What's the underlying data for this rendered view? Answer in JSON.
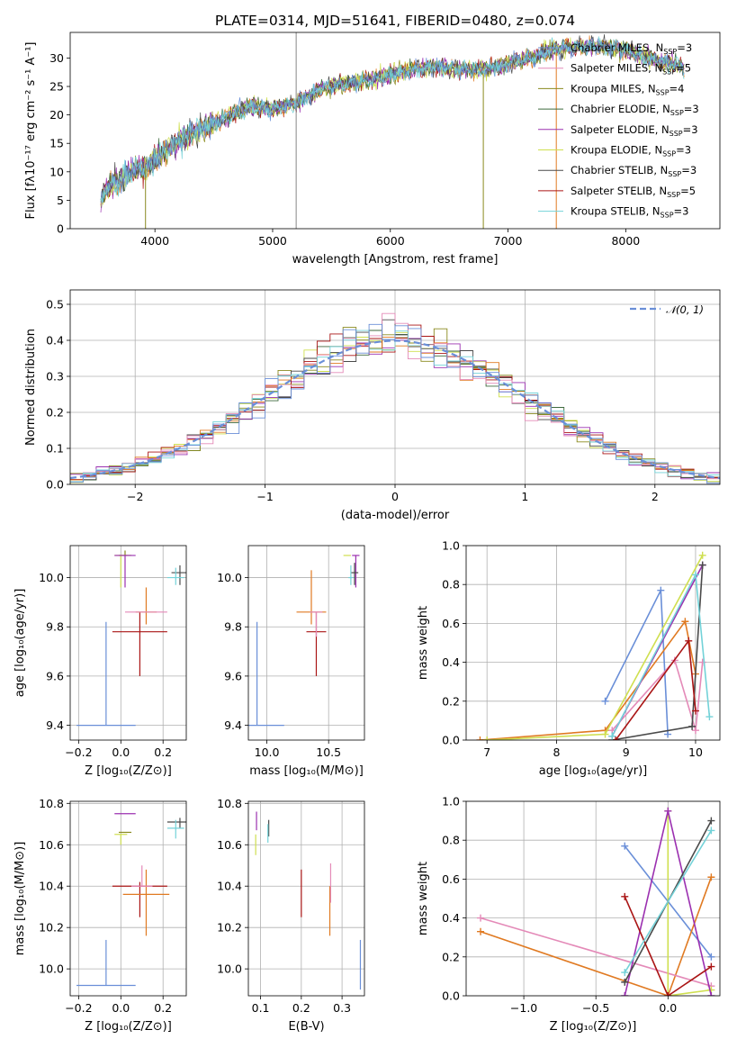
{
  "colors": [
    "#6a8fd8",
    "#e07a22",
    "#8a8a1e",
    "#3d6a3d",
    "#9b30b0",
    "#cfdf4f",
    "#4a4a4a",
    "#aa1515",
    "#73d2d8",
    "#e48ab8"
  ],
  "chart_data": [
    {
      "id": "p1",
      "type": "line",
      "title": "PLATE=0314, MJD=51641, FIBERID=0480, z=0.074",
      "xlabel": "wavelength [Angstrom, rest frame]",
      "ylabel": "Flux [fλ10⁻¹⁷ erg cm⁻² s⁻¹ A⁻¹]",
      "xlim": [
        3280,
        8800
      ],
      "ylim": [
        0,
        34.5
      ],
      "xticks": [
        4000,
        5000,
        6000,
        7000,
        8000
      ],
      "xticklabels": [
        "4000",
        "5000",
        "6000",
        "7000",
        "8000"
      ],
      "yticks": [
        0,
        5,
        10,
        15,
        20,
        25,
        30
      ],
      "yticklabels": [
        "0",
        "5",
        "10",
        "15",
        "20",
        "25",
        "30"
      ],
      "grid": false,
      "legend_position": "right",
      "legend": [
        {
          "label": "Chabrier MILES, N",
          "sub": "SSP",
          "tail": "=3",
          "color": "#6a8fd8"
        },
        {
          "label": "Salpeter MILES, N",
          "sub": "SSP",
          "tail": "=5",
          "color": "#e48ab8"
        },
        {
          "label": "Kroupa MILES, N",
          "sub": "SSP",
          "tail": "=4",
          "color": "#8a8a1e"
        },
        {
          "label": "Chabrier ELODIE, N",
          "sub": "SSP",
          "tail": "=3",
          "color": "#3d6a3d"
        },
        {
          "label": "Salpeter ELODIE, N",
          "sub": "SSP",
          "tail": "=3",
          "color": "#9b30b0"
        },
        {
          "label": "Kroupa ELODIE, N",
          "sub": "SSP",
          "tail": "=3",
          "color": "#cfdf4f"
        },
        {
          "label": "Chabrier STELIB, N",
          "sub": "SSP",
          "tail": "=3",
          "color": "#4a4a4a"
        },
        {
          "label": "Salpeter STELIB, N",
          "sub": "SSP",
          "tail": "=5",
          "color": "#aa1515"
        },
        {
          "label": "Kroupa STELIB, N",
          "sub": "SSP",
          "tail": "=3",
          "color": "#73d2d8"
        }
      ],
      "continuum": [
        [
          3540,
          5
        ],
        [
          3600,
          7.5
        ],
        [
          3700,
          8.5
        ],
        [
          3800,
          10
        ],
        [
          3950,
          11
        ],
        [
          4050,
          13
        ],
        [
          4200,
          15.5
        ],
        [
          4400,
          17.5
        ],
        [
          4600,
          19.5
        ],
        [
          4800,
          21.5
        ],
        [
          5000,
          21
        ],
        [
          5200,
          22
        ],
        [
          5400,
          24.5
        ],
        [
          5600,
          25.5
        ],
        [
          5800,
          26
        ],
        [
          6000,
          27
        ],
        [
          6200,
          28
        ],
        [
          6400,
          28.5
        ],
        [
          6600,
          28
        ],
        [
          6800,
          28
        ],
        [
          7000,
          29
        ],
        [
          7200,
          30
        ],
        [
          7400,
          31.5
        ],
        [
          7600,
          32
        ],
        [
          7800,
          32
        ],
        [
          8000,
          31.5
        ],
        [
          8200,
          30
        ],
        [
          8400,
          29
        ],
        [
          8500,
          28
        ]
      ],
      "spikes": [
        {
          "x": 3920,
          "ymin": 0,
          "ymax": 11,
          "color": "#8a8a1e"
        },
        {
          "x": 5200,
          "ymin": 0,
          "ymax": 34.5,
          "color": "#888888"
        },
        {
          "x": 6790,
          "ymin": 0,
          "ymax": 27,
          "color": "#8a8a1e"
        },
        {
          "x": 7410,
          "ymin": 0,
          "ymax": 31,
          "color": "#e07a22"
        }
      ]
    },
    {
      "id": "p2",
      "type": "area",
      "xlabel": "(data-model)/error",
      "ylabel": "Normed distribution",
      "xlim": [
        -2.5,
        2.5
      ],
      "ylim": [
        0,
        0.54
      ],
      "xticks": [
        -2,
        -1,
        0,
        1,
        2
      ],
      "xticklabels": [
        "−2",
        "−1",
        "0",
        "1",
        "2"
      ],
      "yticks": [
        0,
        0.1,
        0.2,
        0.3,
        0.4,
        0.5
      ],
      "yticklabels": [
        "0.0",
        "0.1",
        "0.2",
        "0.3",
        "0.4",
        "0.5"
      ],
      "grid": true,
      "legend_position": "top-right",
      "legend_label": "𝒩(0, 1)",
      "bin_width": 0.1,
      "bin_start": -2.5
    },
    {
      "id": "p3",
      "type": "scatter",
      "xlabel": "Z [log₁₀(Z/Z⊙)]",
      "ylabel": "age  [log₁₀(age/yr)]",
      "xlim": [
        -0.24,
        0.31
      ],
      "ylim": [
        9.34,
        10.13
      ],
      "xticks": [
        -0.2,
        0,
        0.2
      ],
      "xticklabels": [
        "−0.2",
        "0.0",
        "0.2"
      ],
      "yticks": [
        9.4,
        9.6,
        9.8,
        10.0
      ],
      "yticklabels": [
        "9.4",
        "9.6",
        "9.8",
        "10.0"
      ],
      "grid": true,
      "points": [
        {
          "x": -0.07,
          "y": 9.4,
          "xerr": 0.14,
          "yerr": [
            0.0,
            0.42
          ],
          "color": "#6a8fd8"
        },
        {
          "x": 0.09,
          "y": 9.78,
          "xerr": 0.13,
          "yerr": [
            0.18,
            0.08
          ],
          "color": "#aa1515"
        },
        {
          "x": 0.12,
          "y": 9.86,
          "xerr": 0.05,
          "yerr": [
            0.05,
            0.1
          ],
          "color": "#e07a22"
        },
        {
          "x": 0.12,
          "y": 9.86,
          "xerr": 0.1,
          "yerr": [
            0.0,
            0.0
          ],
          "color": "#e48ab8"
        },
        {
          "x": 0.0,
          "y": 10.09,
          "xerr": 0.03,
          "yerr": [
            0.13,
            0.0
          ],
          "color": "#cfdf4f"
        },
        {
          "x": 0.02,
          "y": 10.09,
          "xerr": 0.03,
          "yerr": [
            0.0,
            0.02
          ],
          "color": "#8a8a1e"
        },
        {
          "x": 0.02,
          "y": 10.09,
          "xerr": 0.05,
          "yerr": [
            0.13,
            0.0
          ],
          "color": "#9b30b0"
        },
        {
          "x": 0.28,
          "y": 10.02,
          "xerr": 0.04,
          "yerr": [
            0.05,
            0.03
          ],
          "color": "#4a4a4a"
        },
        {
          "x": 0.26,
          "y": 10.0,
          "xerr": 0.04,
          "yerr": [
            0.03,
            0.04
          ],
          "color": "#73d2d8"
        }
      ]
    },
    {
      "id": "p4",
      "type": "scatter",
      "xlabel": "mass [log₁₀(M/M⊙)]",
      "ylabel": "",
      "xlim": [
        9.85,
        10.79
      ],
      "ylim": [
        9.34,
        10.13
      ],
      "xticks": [
        10.0,
        10.5
      ],
      "xticklabels": [
        "10.0",
        "10.5"
      ],
      "yticks": [
        9.4,
        9.6,
        9.8,
        10.0
      ],
      "yticklabels": [
        "9.4",
        "9.6",
        "9.8",
        "10.0"
      ],
      "grid": true,
      "points": [
        {
          "x": 9.92,
          "y": 9.4,
          "xerr": 0.22,
          "yerr": [
            0.0,
            0.42
          ],
          "color": "#6a8fd8"
        },
        {
          "x": 10.4,
          "y": 9.78,
          "xerr": 0.08,
          "yerr": [
            0.18,
            0.08
          ],
          "color": "#aa1515"
        },
        {
          "x": 10.36,
          "y": 9.86,
          "xerr": 0.12,
          "yerr": [
            0.05,
            0.17
          ],
          "color": "#e07a22"
        },
        {
          "x": 10.4,
          "y": 9.86,
          "xerr": 0.05,
          "yerr": [
            0.1,
            0.0
          ],
          "color": "#e48ab8"
        },
        {
          "x": 10.65,
          "y": 10.09,
          "xerr": 0.03,
          "yerr": [
            0.0,
            0.0
          ],
          "color": "#cfdf4f"
        },
        {
          "x": 10.72,
          "y": 10.09,
          "xerr": 0.03,
          "yerr": [
            0.13,
            0.0
          ],
          "color": "#9b30b0"
        },
        {
          "x": 10.71,
          "y": 10.02,
          "xerr": 0.03,
          "yerr": [
            0.05,
            0.04
          ],
          "color": "#4a4a4a"
        },
        {
          "x": 10.68,
          "y": 10.0,
          "xerr": 0.02,
          "yerr": [
            0.03,
            0.05
          ],
          "color": "#73d2d8"
        }
      ]
    },
    {
      "id": "p5",
      "type": "line",
      "xlabel": "age  [log₁₀(age/yr)]",
      "ylabel": "mass weight",
      "xlim": [
        6.7,
        10.35
      ],
      "ylim": [
        0,
        1.0
      ],
      "xticks": [
        7,
        8,
        9,
        10
      ],
      "xticklabels": [
        "7",
        "8",
        "9",
        "10"
      ],
      "yticks": [
        0,
        0.2,
        0.4,
        0.6,
        0.8,
        1.0
      ],
      "yticklabels": [
        "0.0",
        "0.2",
        "0.4",
        "0.6",
        "0.8",
        "1.0"
      ],
      "grid": true,
      "series": [
        {
          "color": "#6a8fd8",
          "points": [
            [
              8.7,
              0.2
            ],
            [
              9.5,
              0.77
            ],
            [
              9.6,
              0.03
            ]
          ]
        },
        {
          "color": "#e07a22",
          "points": [
            [
              6.9,
              0.0
            ],
            [
              8.7,
              0.05
            ],
            [
              9.85,
              0.61
            ],
            [
              10.0,
              0.34
            ]
          ]
        },
        {
          "color": "#e48ab8",
          "points": [
            [
              8.8,
              0.05
            ],
            [
              9.7,
              0.41
            ],
            [
              10.0,
              0.05
            ],
            [
              10.1,
              0.4
            ]
          ]
        },
        {
          "color": "#cfdf4f",
          "points": [
            [
              7.0,
              0.0
            ],
            [
              8.7,
              0.03
            ],
            [
              10.1,
              0.95
            ]
          ]
        },
        {
          "color": "#9b30b0",
          "points": [
            [
              8.8,
              0.02
            ],
            [
              10.1,
              0.9
            ]
          ]
        },
        {
          "color": "#4a4a4a",
          "points": [
            [
              8.8,
              0.0
            ],
            [
              9.95,
              0.07
            ],
            [
              10.1,
              0.9
            ]
          ]
        },
        {
          "color": "#aa1515",
          "points": [
            [
              8.85,
              0.0
            ],
            [
              9.9,
              0.51
            ],
            [
              10.0,
              0.15
            ]
          ]
        },
        {
          "color": "#73d2d8",
          "points": [
            [
              8.8,
              0.02
            ],
            [
              10.0,
              0.85
            ],
            [
              10.2,
              0.12
            ]
          ]
        }
      ]
    },
    {
      "id": "p6",
      "type": "scatter",
      "xlabel": "Z [log₁₀(Z/Z⊙)]",
      "ylabel": "mass [log₁₀(M/M⊙)]",
      "xlim": [
        -0.24,
        0.31
      ],
      "ylim": [
        9.87,
        10.81
      ],
      "xticks": [
        -0.2,
        0,
        0.2
      ],
      "xticklabels": [
        "−0.2",
        "0.0",
        "0.2"
      ],
      "yticks": [
        10.0,
        10.2,
        10.4,
        10.6,
        10.8
      ],
      "yticklabels": [
        "10.0",
        "10.2",
        "10.4",
        "10.6",
        "10.8"
      ],
      "grid": true,
      "points": [
        {
          "x": -0.07,
          "y": 9.92,
          "xerr": 0.14,
          "yerr": [
            0.0,
            0.22
          ],
          "color": "#6a8fd8"
        },
        {
          "x": 0.09,
          "y": 10.4,
          "xerr": 0.13,
          "yerr": [
            0.15,
            0.02
          ],
          "color": "#aa1515"
        },
        {
          "x": 0.12,
          "y": 10.36,
          "xerr": 0.11,
          "yerr": [
            0.2,
            0.12
          ],
          "color": "#e07a22"
        },
        {
          "x": 0.1,
          "y": 10.4,
          "xerr": 0.05,
          "yerr": [
            0.0,
            0.1
          ],
          "color": "#e48ab8"
        },
        {
          "x": 0.0,
          "y": 10.65,
          "xerr": 0.03,
          "yerr": [
            0.05,
            0.0
          ],
          "color": "#cfdf4f"
        },
        {
          "x": 0.02,
          "y": 10.66,
          "xerr": 0.03,
          "yerr": [
            0.0,
            0.0
          ],
          "color": "#8a8a1e"
        },
        {
          "x": 0.02,
          "y": 10.75,
          "xerr": 0.05,
          "yerr": [
            0.0,
            0.0
          ],
          "color": "#9b30b0"
        },
        {
          "x": 0.28,
          "y": 10.71,
          "xerr": 0.06,
          "yerr": [
            0.03,
            0.02
          ],
          "color": "#4a4a4a"
        },
        {
          "x": 0.26,
          "y": 10.68,
          "xerr": 0.04,
          "yerr": [
            0.05,
            0.04
          ],
          "color": "#73d2d8"
        }
      ]
    },
    {
      "id": "p7",
      "type": "scatter",
      "xlabel": "E(B-V)",
      "ylabel": "",
      "xlim": [
        0.07,
        0.355
      ],
      "ylim": [
        9.87,
        10.81
      ],
      "xticks": [
        0.1,
        0.2,
        0.3
      ],
      "xticklabels": [
        "0.1",
        "0.2",
        "0.3"
      ],
      "yticks": [
        10.0,
        10.2,
        10.4,
        10.6,
        10.8
      ],
      "yticklabels": [
        "10.0",
        "10.2",
        "10.4",
        "10.6",
        "10.8"
      ],
      "grid": true,
      "points": [
        {
          "x": 0.345,
          "y": 10.0,
          "xerr": 0.0,
          "yerr": [
            0.1,
            0.14
          ],
          "color": "#6a8fd8"
        },
        {
          "x": 0.2,
          "y": 10.36,
          "xerr": 0.0,
          "yerr": [
            0.11,
            0.12
          ],
          "color": "#aa1515"
        },
        {
          "x": 0.27,
          "y": 10.28,
          "xerr": 0.0,
          "yerr": [
            0.12,
            0.12
          ],
          "color": "#e07a22"
        },
        {
          "x": 0.272,
          "y": 10.42,
          "xerr": 0.0,
          "yerr": [
            0.1,
            0.09
          ],
          "color": "#e48ab8"
        },
        {
          "x": 0.088,
          "y": 10.6,
          "xerr": 0.0,
          "yerr": [
            0.05,
            0.05
          ],
          "color": "#cfdf4f"
        },
        {
          "x": 0.09,
          "y": 10.72,
          "xerr": 0.0,
          "yerr": [
            0.05,
            0.04
          ],
          "color": "#9b30b0"
        },
        {
          "x": 0.12,
          "y": 10.68,
          "xerr": 0.0,
          "yerr": [
            0.04,
            0.04
          ],
          "color": "#4a4a4a"
        },
        {
          "x": 0.118,
          "y": 10.66,
          "xerr": 0.0,
          "yerr": [
            0.05,
            0.04
          ],
          "color": "#73d2d8"
        }
      ]
    },
    {
      "id": "p8",
      "type": "line",
      "xlabel": "Z [log₁₀(Z/Z⊙)]",
      "ylabel": "mass weight",
      "xlim": [
        -1.4,
        0.36
      ],
      "ylim": [
        0,
        1.0
      ],
      "xticks": [
        -1.0,
        -0.5,
        0.0
      ],
      "xticklabels": [
        "−1.0",
        "−0.5",
        "0.0"
      ],
      "yticks": [
        0,
        0.2,
        0.4,
        0.6,
        0.8,
        1.0
      ],
      "yticklabels": [
        "0.0",
        "0.2",
        "0.4",
        "0.6",
        "0.8",
        "1.0"
      ],
      "grid": true,
      "series": [
        {
          "color": "#6a8fd8",
          "points": [
            [
              -0.3,
              0.77
            ],
            [
              0.3,
              0.2
            ]
          ]
        },
        {
          "color": "#e07a22",
          "points": [
            [
              -1.3,
              0.33
            ],
            [
              0.0,
              0.0
            ],
            [
              0.3,
              0.61
            ]
          ]
        },
        {
          "color": "#e48ab8",
          "points": [
            [
              -1.3,
              0.4
            ],
            [
              0.3,
              0.05
            ]
          ]
        },
        {
          "color": "#cfdf4f",
          "points": [
            [
              0.0,
              0.95
            ],
            [
              0.0,
              0.0
            ],
            [
              0.3,
              0.03
            ]
          ]
        },
        {
          "color": "#9b30b0",
          "points": [
            [
              -0.3,
              0.0
            ],
            [
              0.0,
              0.95
            ],
            [
              0.3,
              0.0
            ]
          ]
        },
        {
          "color": "#4a4a4a",
          "points": [
            [
              -0.3,
              0.07
            ],
            [
              0.3,
              0.9
            ]
          ]
        },
        {
          "color": "#aa1515",
          "points": [
            [
              -0.3,
              0.51
            ],
            [
              0.0,
              0.0
            ],
            [
              0.3,
              0.15
            ]
          ]
        },
        {
          "color": "#73d2d8",
          "points": [
            [
              -0.3,
              0.12
            ],
            [
              0.3,
              0.85
            ]
          ]
        }
      ]
    }
  ]
}
